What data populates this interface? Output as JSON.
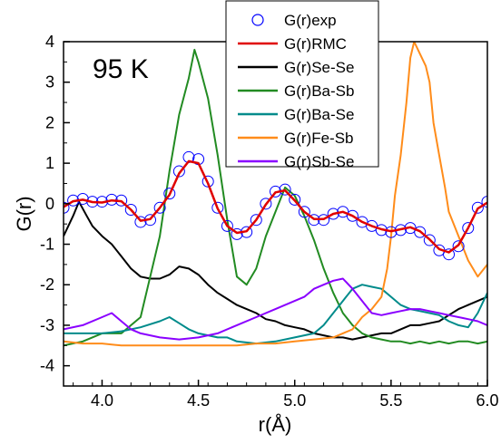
{
  "chart_data": {
    "type": "line",
    "xlabel": "r(Å)",
    "ylabel": "G(r)",
    "xlim": [
      3.8,
      6.0
    ],
    "ylim": [
      -4.5,
      4.0
    ],
    "x_ticks": [
      "4.0",
      "4.5",
      "5.0",
      "5.5",
      "6.0"
    ],
    "y_ticks": [
      "-4",
      "-3",
      "-2",
      "-1",
      "0",
      "1",
      "2",
      "3",
      "4"
    ],
    "annotation": "95 K",
    "legend_position": "top-center",
    "grid": false,
    "series": [
      {
        "name": "G(r)exp",
        "style": "markers",
        "color": "#0000ff",
        "x": [
          3.8,
          3.85,
          3.9,
          3.95,
          4.0,
          4.05,
          4.1,
          4.15,
          4.2,
          4.25,
          4.3,
          4.35,
          4.4,
          4.45,
          4.5,
          4.55,
          4.6,
          4.65,
          4.7,
          4.75,
          4.8,
          4.85,
          4.9,
          4.95,
          5.0,
          5.05,
          5.1,
          5.15,
          5.2,
          5.25,
          5.3,
          5.35,
          5.4,
          5.45,
          5.5,
          5.55,
          5.6,
          5.65,
          5.7,
          5.75,
          5.8,
          5.85,
          5.9,
          5.95,
          6.0
        ],
        "y": [
          -0.1,
          0.08,
          0.12,
          0.05,
          0.05,
          0.1,
          0.08,
          -0.15,
          -0.45,
          -0.4,
          -0.1,
          0.25,
          0.8,
          1.15,
          1.1,
          0.55,
          -0.1,
          -0.55,
          -0.75,
          -0.7,
          -0.4,
          0.0,
          0.3,
          0.35,
          0.1,
          -0.2,
          -0.4,
          -0.4,
          -0.25,
          -0.2,
          -0.3,
          -0.45,
          -0.55,
          -0.65,
          -0.7,
          -0.65,
          -0.6,
          -0.7,
          -0.9,
          -1.15,
          -1.25,
          -1.05,
          -0.6,
          -0.1,
          0.05
        ]
      },
      {
        "name": "G(r)RMC",
        "style": "line",
        "color": "#e00000",
        "x": [
          3.8,
          3.85,
          3.9,
          3.95,
          4.0,
          4.05,
          4.1,
          4.15,
          4.2,
          4.25,
          4.3,
          4.35,
          4.4,
          4.45,
          4.5,
          4.55,
          4.6,
          4.65,
          4.7,
          4.75,
          4.8,
          4.85,
          4.9,
          4.95,
          5.0,
          5.05,
          5.1,
          5.15,
          5.2,
          5.25,
          5.3,
          5.35,
          5.4,
          5.45,
          5.5,
          5.55,
          5.6,
          5.65,
          5.7,
          5.75,
          5.8,
          5.85,
          5.9,
          5.95,
          6.0
        ],
        "y": [
          -0.08,
          0.06,
          0.1,
          0.04,
          0.03,
          0.08,
          0.06,
          -0.15,
          -0.42,
          -0.38,
          -0.1,
          0.22,
          0.75,
          1.05,
          1.0,
          0.5,
          -0.12,
          -0.55,
          -0.72,
          -0.68,
          -0.4,
          -0.02,
          0.28,
          0.33,
          0.08,
          -0.2,
          -0.38,
          -0.38,
          -0.25,
          -0.2,
          -0.3,
          -0.45,
          -0.55,
          -0.63,
          -0.68,
          -0.63,
          -0.58,
          -0.68,
          -0.88,
          -1.12,
          -1.2,
          -1.02,
          -0.6,
          -0.12,
          0.03
        ]
      },
      {
        "name": "G(r)Se-Se",
        "style": "line",
        "color": "#000000",
        "x": [
          3.8,
          3.85,
          3.88,
          3.92,
          3.95,
          4.0,
          4.05,
          4.1,
          4.15,
          4.2,
          4.25,
          4.3,
          4.35,
          4.4,
          4.45,
          4.5,
          4.55,
          4.6,
          4.65,
          4.7,
          4.75,
          4.8,
          4.85,
          4.9,
          4.95,
          5.0,
          5.05,
          5.1,
          5.15,
          5.2,
          5.25,
          5.3,
          5.35,
          5.4,
          5.45,
          5.5,
          5.55,
          5.6,
          5.65,
          5.7,
          5.75,
          5.8,
          5.85,
          5.9,
          5.95,
          6.0
        ],
        "y": [
          -0.8,
          -0.3,
          0.05,
          -0.3,
          -0.55,
          -0.8,
          -1.0,
          -1.3,
          -1.6,
          -1.8,
          -1.85,
          -1.85,
          -1.75,
          -1.55,
          -1.6,
          -1.75,
          -2.0,
          -2.2,
          -2.35,
          -2.5,
          -2.6,
          -2.7,
          -2.85,
          -2.9,
          -3.0,
          -3.05,
          -3.1,
          -3.2,
          -3.25,
          -3.3,
          -3.3,
          -3.35,
          -3.3,
          -3.25,
          -3.2,
          -3.2,
          -3.1,
          -3.0,
          -3.0,
          -2.95,
          -2.9,
          -2.75,
          -2.6,
          -2.5,
          -2.4,
          -2.3
        ]
      },
      {
        "name": "G(r)Ba-Sb",
        "style": "line",
        "color": "#228b22",
        "x": [
          3.8,
          3.9,
          4.0,
          4.1,
          4.2,
          4.25,
          4.3,
          4.35,
          4.4,
          4.45,
          4.48,
          4.5,
          4.55,
          4.6,
          4.65,
          4.7,
          4.75,
          4.8,
          4.85,
          4.9,
          4.95,
          5.0,
          5.05,
          5.1,
          5.15,
          5.2,
          5.25,
          5.3,
          5.35,
          5.4,
          5.45,
          5.5,
          5.55,
          5.6,
          5.65,
          5.7,
          5.75,
          5.8,
          5.85,
          5.9,
          5.95,
          6.0
        ],
        "y": [
          -3.5,
          -3.4,
          -3.2,
          -3.2,
          -2.8,
          -1.8,
          -0.8,
          0.8,
          2.2,
          3.1,
          3.8,
          3.5,
          2.6,
          1.2,
          -0.4,
          -1.8,
          -2.0,
          -1.6,
          -0.8,
          -0.2,
          0.4,
          0.2,
          -0.3,
          -0.9,
          -1.6,
          -2.2,
          -2.7,
          -3.0,
          -3.2,
          -3.3,
          -3.35,
          -3.4,
          -3.4,
          -3.45,
          -3.4,
          -3.45,
          -3.4,
          -3.45,
          -3.4,
          -3.4,
          -3.45,
          -3.4
        ]
      },
      {
        "name": "G(r)Ba-Se",
        "style": "line",
        "color": "#008b8b",
        "x": [
          3.8,
          3.9,
          4.0,
          4.1,
          4.2,
          4.3,
          4.35,
          4.4,
          4.45,
          4.5,
          4.55,
          4.6,
          4.65,
          4.7,
          4.8,
          4.9,
          5.0,
          5.05,
          5.1,
          5.15,
          5.2,
          5.25,
          5.3,
          5.35,
          5.4,
          5.45,
          5.5,
          5.55,
          5.6,
          5.65,
          5.7,
          5.75,
          5.8,
          5.85,
          5.9,
          5.95,
          6.0
        ],
        "y": [
          -3.2,
          -3.2,
          -3.2,
          -3.15,
          -3.05,
          -2.9,
          -2.8,
          -2.95,
          -3.1,
          -3.2,
          -3.25,
          -3.3,
          -3.3,
          -3.4,
          -3.45,
          -3.4,
          -3.3,
          -3.25,
          -3.2,
          -3.0,
          -2.7,
          -2.4,
          -2.1,
          -2.0,
          -2.05,
          -2.1,
          -2.3,
          -2.5,
          -2.6,
          -2.65,
          -2.7,
          -2.75,
          -2.9,
          -3.0,
          -3.05,
          -2.7,
          -2.2
        ]
      },
      {
        "name": "G(r)Fe-Sb",
        "style": "line",
        "color": "#ff8c1a",
        "x": [
          3.8,
          3.9,
          4.0,
          4.1,
          4.2,
          4.3,
          4.4,
          4.5,
          4.6,
          4.7,
          4.8,
          4.9,
          5.0,
          5.1,
          5.2,
          5.3,
          5.35,
          5.4,
          5.45,
          5.48,
          5.5,
          5.52,
          5.55,
          5.58,
          5.6,
          5.62,
          5.65,
          5.68,
          5.7,
          5.72,
          5.75,
          5.78,
          5.8,
          5.85,
          5.9,
          5.95,
          6.0
        ],
        "y": [
          -3.4,
          -3.45,
          -3.45,
          -3.5,
          -3.5,
          -3.5,
          -3.5,
          -3.5,
          -3.5,
          -3.5,
          -3.45,
          -3.45,
          -3.4,
          -3.35,
          -3.3,
          -3.1,
          -2.8,
          -2.6,
          -2.3,
          -1.6,
          -0.8,
          0.2,
          1.2,
          2.5,
          3.6,
          4.0,
          3.7,
          3.4,
          3.0,
          2.0,
          1.2,
          0.4,
          -0.2,
          -0.8,
          -1.4,
          -1.8,
          -1.5
        ]
      },
      {
        "name": "G(r)Sb-Se",
        "style": "line",
        "color": "#8a00ff",
        "x": [
          3.8,
          3.9,
          4.0,
          4.05,
          4.1,
          4.15,
          4.2,
          4.3,
          4.4,
          4.5,
          4.6,
          4.7,
          4.8,
          4.9,
          5.0,
          5.05,
          5.1,
          5.15,
          5.2,
          5.25,
          5.3,
          5.35,
          5.4,
          5.45,
          5.5,
          5.55,
          5.6,
          5.65,
          5.7,
          5.75,
          5.8,
          5.85,
          5.9,
          5.95,
          6.0
        ],
        "y": [
          -3.1,
          -3.0,
          -2.8,
          -2.7,
          -2.9,
          -3.1,
          -3.2,
          -3.3,
          -3.35,
          -3.3,
          -3.2,
          -3.0,
          -2.8,
          -2.6,
          -2.4,
          -2.3,
          -2.1,
          -2.0,
          -1.9,
          -1.85,
          -2.1,
          -2.4,
          -2.7,
          -2.75,
          -2.7,
          -2.65,
          -2.6,
          -2.6,
          -2.65,
          -2.7,
          -2.75,
          -2.8,
          -2.85,
          -2.9,
          -3.0
        ]
      }
    ]
  }
}
